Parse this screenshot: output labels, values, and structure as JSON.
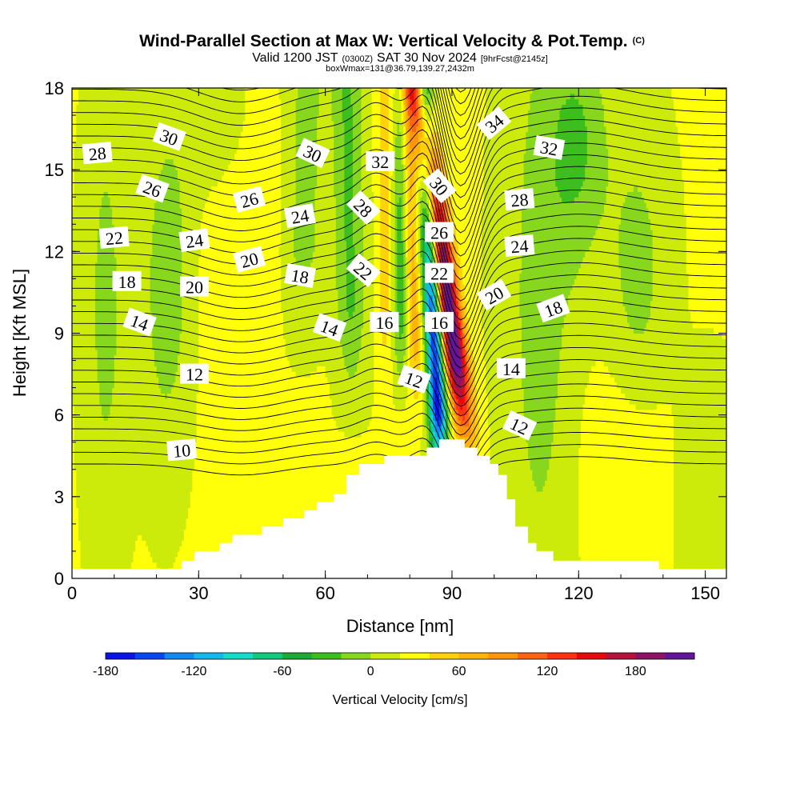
{
  "title": {
    "main": "Wind-Parallel Section at Max W: Vertical Velocity & Pot.Temp.",
    "copyright": "(C)",
    "valid_a": "Valid 1200 JST",
    "valid_tz": "(0300Z)",
    "valid_b": "SAT 30 Nov 2024",
    "valid_fcst": "[9hrFcst@2145z]",
    "box": "boxWmax=131@36.79,139.27,2432m"
  },
  "chart_data": {
    "type": "heatmap",
    "title": "Wind-Parallel Section at Max W: Vertical Velocity & Pot.Temp.",
    "xlabel": "Distance [nm]",
    "ylabel": "Height [Kft MSL]",
    "xlim": [
      0,
      155
    ],
    "ylim": [
      0,
      18
    ],
    "x_ticks": [
      0,
      30,
      60,
      90,
      120,
      150
    ],
    "y_ticks": [
      0,
      3,
      6,
      9,
      12,
      15,
      18
    ],
    "colorbar": {
      "label": "Vertical Velocity [cm/s]",
      "levels": [
        -180,
        -160,
        -140,
        -120,
        -100,
        -80,
        -60,
        -40,
        -20,
        0,
        20,
        40,
        60,
        80,
        100,
        120,
        140,
        160,
        180,
        200,
        220
      ],
      "tick_values": [
        -180,
        -120,
        -60,
        0,
        60,
        120,
        180
      ],
      "colors": [
        "#0a14e6",
        "#0a46f0",
        "#1487f0",
        "#14b9eb",
        "#14dcc8",
        "#14c87d",
        "#1eaa37",
        "#3cbe1e",
        "#87d71e",
        "#cdeb0a",
        "#ffff0a",
        "#ffd20a",
        "#ffb40a",
        "#ff960a",
        "#ff6414",
        "#ff3214",
        "#e60a0a",
        "#b4143c",
        "#8c1464",
        "#641496"
      ]
    },
    "terrain_profile": [
      {
        "x": 0,
        "h": 0.35
      },
      {
        "x": 26,
        "h": 0.35
      },
      {
        "x": 26,
        "h": 0.65
      },
      {
        "x": 29,
        "h": 0.65
      },
      {
        "x": 29,
        "h": 1.0
      },
      {
        "x": 35,
        "h": 1.0
      },
      {
        "x": 35,
        "h": 1.3
      },
      {
        "x": 38,
        "h": 1.3
      },
      {
        "x": 38,
        "h": 1.6
      },
      {
        "x": 45,
        "h": 1.6
      },
      {
        "x": 45,
        "h": 1.9
      },
      {
        "x": 50,
        "h": 1.9
      },
      {
        "x": 50,
        "h": 2.2
      },
      {
        "x": 55,
        "h": 2.2
      },
      {
        "x": 55,
        "h": 2.5
      },
      {
        "x": 58,
        "h": 2.5
      },
      {
        "x": 58,
        "h": 2.8
      },
      {
        "x": 62,
        "h": 2.8
      },
      {
        "x": 62,
        "h": 3.1
      },
      {
        "x": 65,
        "h": 3.1
      },
      {
        "x": 65,
        "h": 3.8
      },
      {
        "x": 68,
        "h": 3.8
      },
      {
        "x": 68,
        "h": 4.2
      },
      {
        "x": 74,
        "h": 4.2
      },
      {
        "x": 74,
        "h": 4.5
      },
      {
        "x": 84,
        "h": 4.5
      },
      {
        "x": 84,
        "h": 4.8
      },
      {
        "x": 87,
        "h": 4.8
      },
      {
        "x": 87,
        "h": 5.1
      },
      {
        "x": 93,
        "h": 5.1
      },
      {
        "x": 93,
        "h": 4.8
      },
      {
        "x": 96,
        "h": 4.8
      },
      {
        "x": 96,
        "h": 4.5
      },
      {
        "x": 99,
        "h": 4.5
      },
      {
        "x": 99,
        "h": 4.2
      },
      {
        "x": 101,
        "h": 4.2
      },
      {
        "x": 101,
        "h": 3.8
      },
      {
        "x": 103,
        "h": 3.8
      },
      {
        "x": 103,
        "h": 2.9
      },
      {
        "x": 105,
        "h": 2.9
      },
      {
        "x": 105,
        "h": 1.9
      },
      {
        "x": 108,
        "h": 1.9
      },
      {
        "x": 108,
        "h": 1.3
      },
      {
        "x": 110,
        "h": 1.3
      },
      {
        "x": 110,
        "h": 1.0
      },
      {
        "x": 114,
        "h": 1.0
      },
      {
        "x": 114,
        "h": 0.65
      },
      {
        "x": 139,
        "h": 0.65
      },
      {
        "x": 139,
        "h": 0.35
      },
      {
        "x": 155,
        "h": 0.35
      }
    ],
    "potential_temperature_labels": [
      {
        "text": "28",
        "x": 6,
        "y": 15.6,
        "angle": -5
      },
      {
        "text": "30",
        "x": 23,
        "y": 16.2,
        "angle": 20
      },
      {
        "text": "26",
        "x": 19,
        "y": 14.3,
        "angle": 20
      },
      {
        "text": "22",
        "x": 10,
        "y": 12.5,
        "angle": -5
      },
      {
        "text": "24",
        "x": 29,
        "y": 12.4,
        "angle": -8
      },
      {
        "text": "18",
        "x": 13,
        "y": 10.9,
        "angle": 0
      },
      {
        "text": "20",
        "x": 29,
        "y": 10.7,
        "angle": 0
      },
      {
        "text": "14",
        "x": 16,
        "y": 9.4,
        "angle": 20
      },
      {
        "text": "12",
        "x": 29,
        "y": 7.5,
        "angle": 0
      },
      {
        "text": "10",
        "x": 26,
        "y": 4.7,
        "angle": -5
      },
      {
        "text": "26",
        "x": 42,
        "y": 13.9,
        "angle": -15
      },
      {
        "text": "20",
        "x": 42,
        "y": 11.7,
        "angle": -15
      },
      {
        "text": "30",
        "x": 57,
        "y": 15.6,
        "angle": 25
      },
      {
        "text": "24",
        "x": 54,
        "y": 13.3,
        "angle": -10
      },
      {
        "text": "18",
        "x": 54,
        "y": 11.1,
        "angle": 10
      },
      {
        "text": "14",
        "x": 61,
        "y": 9.2,
        "angle": 20
      },
      {
        "text": "32",
        "x": 73,
        "y": 15.3,
        "angle": 0
      },
      {
        "text": "28",
        "x": 69,
        "y": 13.6,
        "angle": 45
      },
      {
        "text": "22",
        "x": 69,
        "y": 11.3,
        "angle": 40
      },
      {
        "text": "16",
        "x": 74,
        "y": 9.4,
        "angle": 0
      },
      {
        "text": "12",
        "x": 81,
        "y": 7.3,
        "angle": 20
      },
      {
        "text": "30",
        "x": 87,
        "y": 14.4,
        "angle": 50
      },
      {
        "text": "26",
        "x": 87,
        "y": 12.7,
        "angle": 0
      },
      {
        "text": "22",
        "x": 87,
        "y": 11.2,
        "angle": 0
      },
      {
        "text": "16",
        "x": 87,
        "y": 9.4,
        "angle": 0
      },
      {
        "text": "34",
        "x": 100,
        "y": 16.7,
        "angle": -40
      },
      {
        "text": "32",
        "x": 113,
        "y": 15.8,
        "angle": 10
      },
      {
        "text": "28",
        "x": 106,
        "y": 13.9,
        "angle": -5
      },
      {
        "text": "24",
        "x": 106,
        "y": 12.2,
        "angle": -5
      },
      {
        "text": "20",
        "x": 100,
        "y": 10.4,
        "angle": -30
      },
      {
        "text": "18",
        "x": 114,
        "y": 9.9,
        "angle": -20
      },
      {
        "text": "14",
        "x": 104,
        "y": 7.7,
        "angle": 0
      },
      {
        "text": "12",
        "x": 106,
        "y": 5.6,
        "angle": 25
      }
    ]
  },
  "colors": {
    "background": "#ffffff",
    "terrain": "#ffffff",
    "contour": "#000000"
  }
}
